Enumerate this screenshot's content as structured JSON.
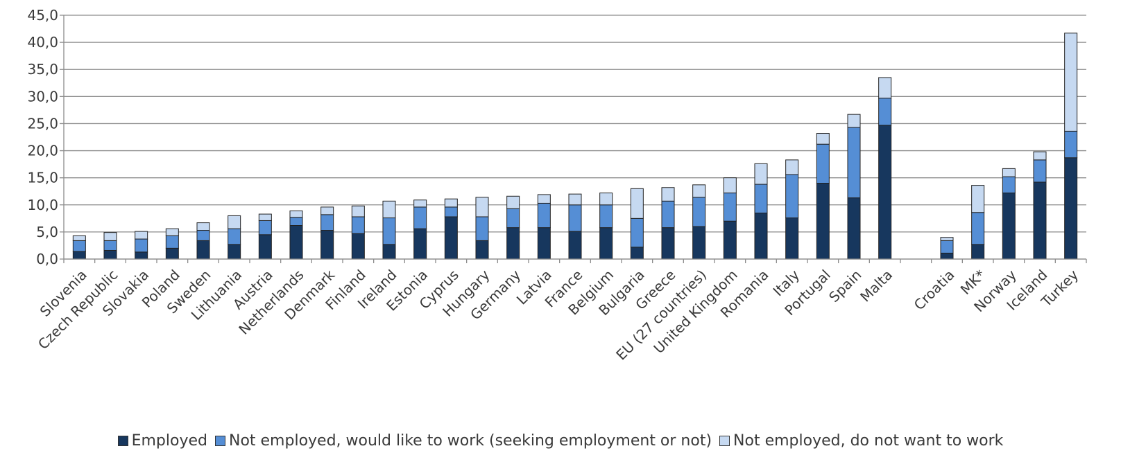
{
  "chart_data": {
    "type": "bar",
    "stacked": true,
    "title": "",
    "xlabel": "",
    "ylabel": "",
    "ylim": [
      0,
      45
    ],
    "yticks": [
      "0,0",
      "5,0",
      "10,0",
      "15,0",
      "20,0",
      "25,0",
      "30,0",
      "35,0",
      "40,0",
      "45,0"
    ],
    "grid": true,
    "legend_position": "bottom",
    "categories": [
      "Slovenia",
      "Czech Republic",
      "Slovakia",
      "Poland",
      "Sweden",
      "Lithuania",
      "Austria",
      "Netherlands",
      "Denmark",
      "Finland",
      "Ireland",
      "Estonia",
      "Cyprus",
      "Hungary",
      "Germany",
      "Latvia",
      "France",
      "Belgium",
      "Bulgaria",
      "Greece",
      "EU (27 countries)",
      "United Kingdom",
      "Romania",
      "Italy",
      "Portugal",
      "Spain",
      "Malta",
      "",
      "Croatia",
      "MK*",
      "Norway",
      "Iceland",
      "Turkey"
    ],
    "series": [
      {
        "name": "Employed",
        "color": "#17375e",
        "values": [
          1.4,
          1.6,
          1.3,
          2.0,
          3.4,
          2.7,
          4.5,
          6.2,
          5.3,
          4.7,
          2.7,
          5.6,
          7.8,
          3.4,
          5.8,
          5.8,
          5.1,
          5.8,
          2.2,
          5.8,
          6.0,
          7.0,
          8.5,
          7.6,
          14.0,
          11.3,
          24.7,
          null,
          1.1,
          2.7,
          12.2,
          14.2,
          18.7
        ]
      },
      {
        "name": "Not employed, would like to work (seeking employment or not)",
        "color": "#558ed5",
        "values": [
          2.0,
          1.8,
          2.4,
          2.3,
          1.9,
          2.9,
          2.6,
          1.5,
          2.9,
          3.1,
          4.9,
          4.0,
          1.8,
          4.4,
          3.5,
          4.5,
          4.9,
          4.2,
          5.3,
          4.9,
          5.4,
          5.2,
          5.3,
          8.0,
          7.2,
          13.0,
          5.0,
          null,
          2.3,
          5.9,
          3.0,
          4.1,
          4.9
        ]
      },
      {
        "name": "Not employed, do not want to work",
        "color": "#c6d9f1",
        "values": [
          0.9,
          1.5,
          1.4,
          1.3,
          1.4,
          2.4,
          1.2,
          1.2,
          1.4,
          2.0,
          3.1,
          1.3,
          1.5,
          3.6,
          2.3,
          1.6,
          2.0,
          2.2,
          5.5,
          2.5,
          2.3,
          2.8,
          3.8,
          2.7,
          2.0,
          2.4,
          3.8,
          null,
          0.6,
          5.0,
          1.5,
          1.5,
          18.1
        ]
      }
    ]
  }
}
